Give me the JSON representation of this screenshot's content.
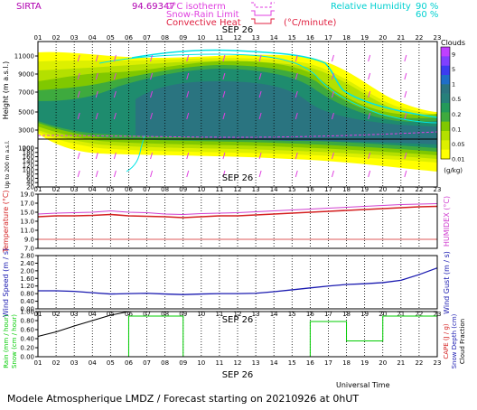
{
  "header": {
    "site": "SIRTA",
    "coords": "94.69347",
    "legend_line1": "0°C isotherm",
    "legend_line2": "Snow-Rain Limit",
    "legend_line3": "Convective Heat",
    "legend_unit": "(°C/minute)",
    "rh_label": "Relative Humidity",
    "rh_90": "90 %",
    "rh_60": "60 %"
  },
  "date_label": "SEP 26",
  "hours": [
    "01",
    "02",
    "03",
    "04",
    "05",
    "06",
    "07",
    "08",
    "09",
    "10",
    "11",
    "12",
    "13",
    "14",
    "15",
    "16",
    "17",
    "18",
    "19",
    "20",
    "21",
    "22",
    "23"
  ],
  "footer": {
    "title": "Modele Atmospherique LMDZ / Forecast starting on 20210926 at 0hUT",
    "xlabel": "Universal Time"
  },
  "colors": {
    "clouds": [
      "#ffff00",
      "#ddf000",
      "#b4e000",
      "#80c800",
      "#3eaa3e",
      "#239a5a",
      "#1e8c6e",
      "#26807a",
      "#2a7480"
    ],
    "temperature": "#d42020",
    "humidex": "#d040d0",
    "wind": "#1a1ab0",
    "precip": "#00cc00",
    "rh": "#00e5e5",
    "isotherm": "#e040e0"
  },
  "chart_data": [
    {
      "type": "heatmap",
      "name": "clouds",
      "title": "Clouds",
      "ylabel": "Height (m a.s.l.)",
      "ylabel_low": "Up to 200 m a.s.l.",
      "y_ticks_high": [
        "11000",
        "9000",
        "7000",
        "5000",
        "3000",
        "1000"
      ],
      "y_ticks_low": [
        "200",
        "180",
        "160",
        "140",
        "120",
        "100",
        "80",
        "60",
        "40",
        "20"
      ],
      "colorbar_labels": [
        "9",
        "5",
        "1",
        "0.5",
        "0.2",
        "0.1",
        "0.05",
        "0.01"
      ],
      "colorbar_unit": "(g/kg)"
    },
    {
      "type": "line",
      "name": "temperature",
      "ylabel": "Temperature (°C)",
      "ylabel_right": "HUMIDEX (°C)",
      "y_ticks": [
        "19.0",
        "17.0",
        "15.0",
        "13.0",
        "11.0",
        "9.0",
        "7.0"
      ],
      "ylim": [
        7,
        19
      ],
      "x": [
        1,
        2,
        3,
        4,
        5,
        6,
        7,
        8,
        9,
        10,
        11,
        12,
        13,
        14,
        15,
        16,
        17,
        18,
        19,
        20,
        21,
        22,
        23
      ],
      "series": [
        {
          "key": "temperature",
          "values": [
            14.0,
            14.2,
            14.2,
            14.3,
            14.5,
            14.2,
            14.1,
            14.0,
            13.8,
            14.0,
            14.2,
            14.2,
            14.4,
            14.6,
            14.8,
            15.0,
            15.2,
            15.4,
            15.6,
            15.8,
            16.0,
            16.2,
            16.3
          ]
        },
        {
          "key": "humidex",
          "values": [
            14.6,
            14.8,
            14.9,
            15.0,
            15.3,
            15.0,
            14.9,
            14.6,
            14.5,
            14.7,
            14.8,
            14.9,
            15.1,
            15.3,
            15.5,
            15.7,
            15.9,
            16.1,
            16.3,
            16.5,
            16.7,
            16.8,
            16.9
          ]
        }
      ]
    },
    {
      "type": "line",
      "name": "wind",
      "ylabel": "Wind Speed (m / s)",
      "ylabel_right": "Wind Gust (m / s)",
      "y_ticks": [
        "2.80",
        "2.40",
        "2.00",
        "1.60",
        "1.20",
        "0.80",
        "0.40",
        "0.00"
      ],
      "ylim": [
        0,
        2.8
      ],
      "x": [
        1,
        2,
        3,
        4,
        5,
        6,
        7,
        8,
        9,
        10,
        11,
        12,
        13,
        14,
        15,
        16,
        17,
        18,
        19,
        20,
        21,
        22,
        23
      ],
      "values": [
        0.95,
        0.95,
        0.92,
        0.85,
        0.78,
        0.8,
        0.82,
        0.78,
        0.75,
        0.78,
        0.8,
        0.8,
        0.82,
        0.9,
        1.0,
        1.1,
        1.2,
        1.28,
        1.32,
        1.38,
        1.5,
        1.8,
        2.15
      ]
    },
    {
      "type": "line",
      "name": "precipitation",
      "ylabel": "Rain (mm / hour)",
      "ylabel2": "Snow (cm / hour)",
      "ylabel_right": "CAPE (J / g)",
      "ylabel_right2": "Snow Depth (cm)",
      "ylabel_right3": "Cloud Fraction",
      "y_ticks": [
        "1.00",
        "0.80",
        "0.60",
        "0.40",
        "0.20",
        "0.00"
      ],
      "ylim": [
        0,
        1
      ],
      "x": [
        1,
        2,
        3,
        4,
        5,
        6,
        7,
        8,
        9,
        10,
        11,
        12,
        13,
        14,
        15,
        16,
        17,
        18,
        19,
        20,
        21,
        22,
        23
      ],
      "cloud_fraction": [
        0,
        0,
        0,
        0,
        0,
        0.9,
        0.9,
        0.9,
        0,
        0,
        0,
        0,
        0,
        0,
        0,
        0.78,
        0.78,
        0.35,
        0.35,
        0.9,
        0.9,
        0.9,
        0.9
      ],
      "cape": [
        0.45,
        0.55,
        0.68,
        0.8,
        0.92,
        1,
        1,
        1,
        1,
        1,
        1,
        1,
        1,
        1,
        1,
        1,
        1,
        1,
        1,
        1,
        1,
        1,
        1
      ]
    }
  ]
}
